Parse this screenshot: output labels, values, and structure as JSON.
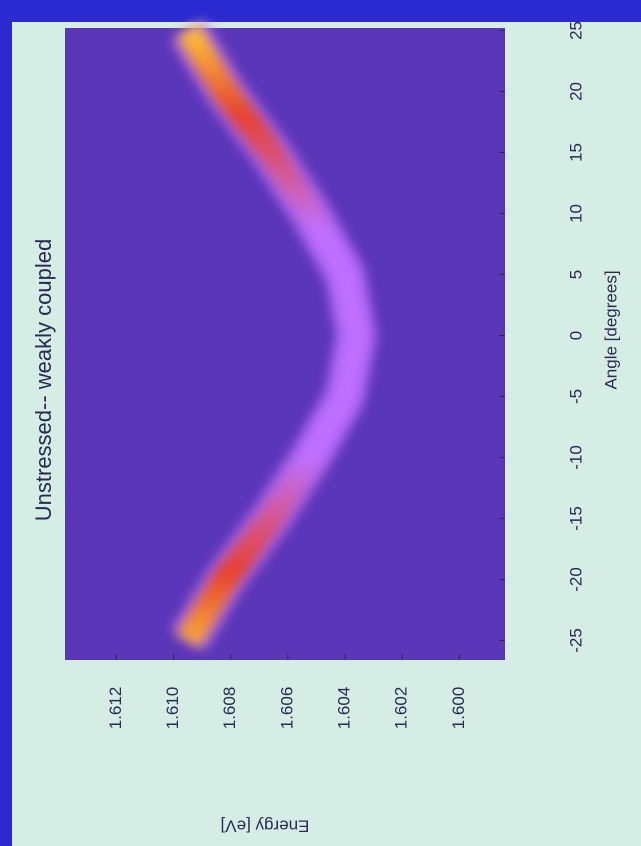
{
  "chart_data": {
    "type": "heatmap",
    "title": "Unstressed-- weakly coupled",
    "xlabel": "Angle [degrees]",
    "ylabel": "Energy [eV]",
    "x": [
      -25,
      -20,
      -15,
      -10,
      -5,
      0,
      5,
      10,
      15,
      20,
      25
    ],
    "series": [
      {
        "values": [
          1.6095,
          1.6082,
          1.6066,
          1.6052,
          1.604,
          1.6036,
          1.604,
          1.6052,
          1.6066,
          1.6082,
          1.6095
        ],
        "color": "#c070ff"
      }
    ],
    "colormap": [
      "#5a36b8",
      "#c070ff",
      "#e8402c",
      "#ffc838"
    ],
    "xlim": [
      -26.6,
      25.2
    ],
    "ylim": [
      1.5984,
      1.6138
    ],
    "xticks": [
      -25,
      -20,
      -15,
      -10,
      -5,
      0,
      5,
      10,
      15,
      20,
      25
    ],
    "yticks": [
      {
        "value": 1.6,
        "label": "1.600"
      },
      1.602,
      1.604,
      1.606,
      1.608,
      {
        "value": 1.61,
        "label": "1.610"
      },
      1.612
    ]
  }
}
